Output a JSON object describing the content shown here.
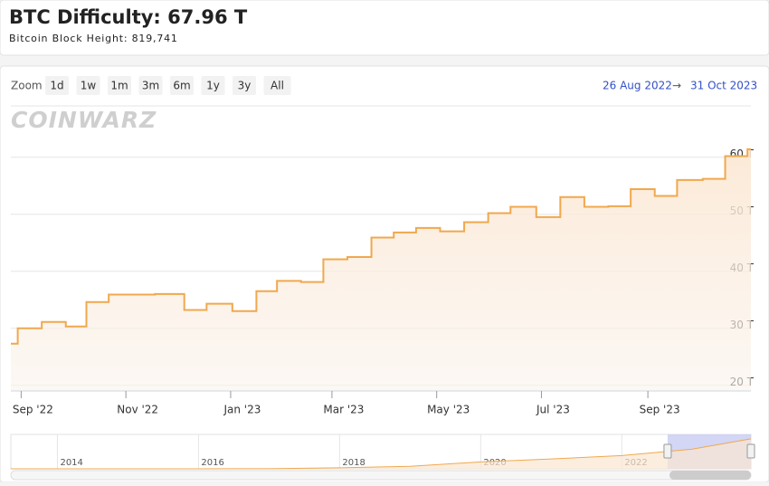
{
  "header": {
    "title": "BTC Difficulty: 67.96 T",
    "subtitle": "Bitcoin Block Height: 819,741"
  },
  "toolbar": {
    "zoom_label": "Zoom",
    "buttons": [
      "1d",
      "1w",
      "1m",
      "3m",
      "6m",
      "1y",
      "3y",
      "All"
    ],
    "range_start": "26 Aug 2022",
    "range_arrow": "→",
    "range_end": "31 Oct 2023"
  },
  "watermark": "COINWARZ",
  "chart_data": {
    "type": "step",
    "color": "#f0a84e",
    "grid": true,
    "x": [
      "2022-08-26",
      "2022-08-30",
      "2022-09-13",
      "2022-09-27",
      "2022-10-09",
      "2022-10-22",
      "2022-11-18",
      "2022-12-05",
      "2022-12-18",
      "2023-01-02",
      "2023-01-16",
      "2023-01-28",
      "2023-02-11",
      "2023-02-24",
      "2023-03-10",
      "2023-03-24",
      "2023-04-06",
      "2023-04-19",
      "2023-05-03",
      "2023-05-17",
      "2023-05-31",
      "2023-06-13",
      "2023-06-28",
      "2023-07-12",
      "2023-07-26",
      "2023-08-09",
      "2023-08-22",
      "2023-09-05",
      "2023-09-18",
      "2023-10-03",
      "2023-10-16",
      "2023-10-29",
      "2023-10-31"
    ],
    "values": [
      27.3,
      30.0,
      31.1,
      30.3,
      34.6,
      35.9,
      36.0,
      33.2,
      34.3,
      33.0,
      36.5,
      38.3,
      38.1,
      42.1,
      42.5,
      45.9,
      46.8,
      47.6,
      47.0,
      48.6,
      50.2,
      51.3,
      49.5,
      53.0,
      51.3,
      51.4,
      54.4,
      53.2,
      56.0,
      56.2,
      60.2,
      61.4,
      61.4
    ],
    "xlim": [
      "2022-08-26",
      "2023-10-31"
    ],
    "xticks": [
      {
        "value": "2022-09-01",
        "label": "Sep '22"
      },
      {
        "value": "2022-11-01",
        "label": "Nov '22"
      },
      {
        "value": "2023-01-01",
        "label": "Jan '23"
      },
      {
        "value": "2023-03-01",
        "label": "Mar '23"
      },
      {
        "value": "2023-05-01",
        "label": "May '23"
      },
      {
        "value": "2023-07-01",
        "label": "Jul '23"
      },
      {
        "value": "2023-09-01",
        "label": "Sep '23"
      }
    ],
    "ylim": [
      19,
      69
    ],
    "yticks": [
      {
        "value": 20,
        "label": "20 T"
      },
      {
        "value": 30,
        "label": "30 T"
      },
      {
        "value": 40,
        "label": "40 T"
      },
      {
        "value": 50,
        "label": "50 T"
      },
      {
        "value": 60,
        "label": "60 T"
      }
    ]
  },
  "navigator": {
    "color": "#f0a84e",
    "x": [
      2013.34,
      2014,
      2015,
      2016,
      2017,
      2018,
      2019,
      2020,
      2021,
      2022,
      2023,
      2023.83
    ],
    "values": [
      0,
      0.01,
      0.04,
      0.1,
      0.3,
      2,
      5,
      14,
      20,
      27,
      40,
      61
    ],
    "xlim": [
      2013.34,
      2023.83
    ],
    "ylim": [
      0,
      70
    ],
    "xticks": [
      2014,
      2016,
      2018,
      2020,
      2022
    ]
  }
}
